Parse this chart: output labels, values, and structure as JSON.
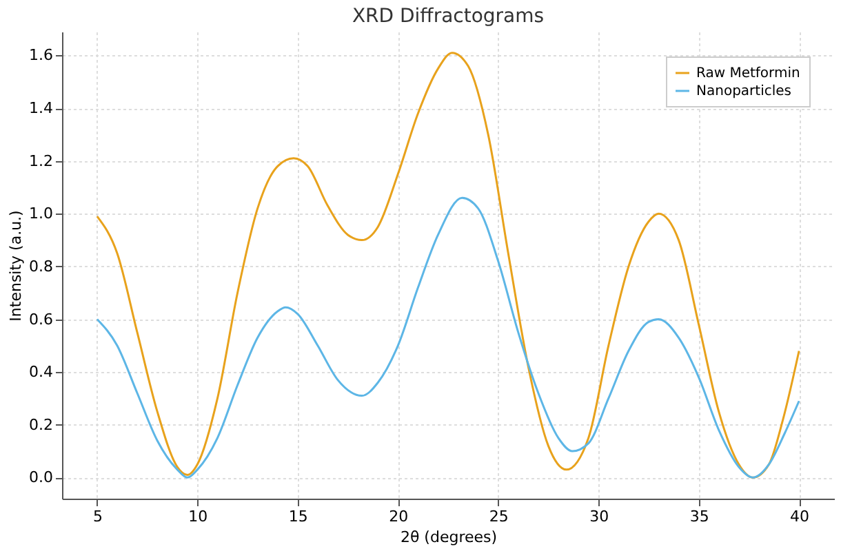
{
  "chart_data": {
    "type": "line",
    "title": "XRD Diffractograms",
    "xlabel": "2θ (degrees)",
    "ylabel": "Intensity (a.u.)",
    "x": [
      5,
      6,
      7,
      8,
      9,
      9.5,
      10,
      11,
      12,
      13,
      14,
      14.8,
      15.5,
      16.5,
      17.5,
      18.2,
      19,
      20,
      21,
      22,
      22.7,
      23.5,
      24.5,
      25.5,
      26.5,
      27.5,
      28.4,
      29.5,
      30.5,
      31.5,
      32.5,
      33,
      34,
      35,
      36,
      37,
      37.7,
      38.5,
      39.2,
      40
    ],
    "series": [
      {
        "name": "Raw Metformin",
        "color": "#e8a21c",
        "values": [
          0.99,
          0.85,
          0.55,
          0.25,
          0.04,
          0.01,
          0.05,
          0.3,
          0.7,
          1.02,
          1.18,
          1.21,
          1.18,
          1.03,
          0.92,
          0.9,
          0.95,
          1.15,
          1.38,
          1.55,
          1.61,
          1.56,
          1.3,
          0.85,
          0.42,
          0.12,
          0.03,
          0.15,
          0.5,
          0.8,
          0.97,
          1.0,
          0.9,
          0.58,
          0.25,
          0.05,
          0.0,
          0.05,
          0.22,
          0.48
        ]
      },
      {
        "name": "Nanoparticles",
        "color": "#5db6e6",
        "x": [
          5,
          6,
          7,
          8,
          9,
          9.5,
          10,
          11,
          12,
          13,
          14,
          14.4,
          15,
          16,
          17,
          18.2,
          19,
          20,
          21,
          22,
          23.2,
          24,
          25,
          26,
          27,
          28,
          28.7,
          29.5,
          30.5,
          31.5,
          32.5,
          33,
          34,
          35,
          36,
          37,
          37.7,
          38.5,
          39.3,
          40
        ],
        "values": [
          0.6,
          0.5,
          0.32,
          0.14,
          0.03,
          0.0,
          0.03,
          0.15,
          0.35,
          0.53,
          0.63,
          0.645,
          0.62,
          0.5,
          0.37,
          0.31,
          0.36,
          0.5,
          0.72,
          0.92,
          1.06,
          1.02,
          0.82,
          0.55,
          0.32,
          0.15,
          0.1,
          0.13,
          0.3,
          0.48,
          0.59,
          0.6,
          0.53,
          0.38,
          0.18,
          0.04,
          0.0,
          0.05,
          0.17,
          0.29
        ]
      }
    ],
    "xlim": [
      3.25,
      41.75
    ],
    "ylim": [
      -0.08,
      1.69
    ],
    "xticks": [
      5,
      10,
      15,
      20,
      25,
      30,
      35,
      40
    ],
    "yticks": [
      {
        "value": 0,
        "label": "0.0"
      },
      0.2,
      0.4,
      0.6,
      0.8,
      {
        "value": 1,
        "label": "1.0"
      },
      1.2,
      1.4,
      1.6
    ],
    "grid": true,
    "legend": "top right",
    "line_style": "solid",
    "marker": "none"
  }
}
